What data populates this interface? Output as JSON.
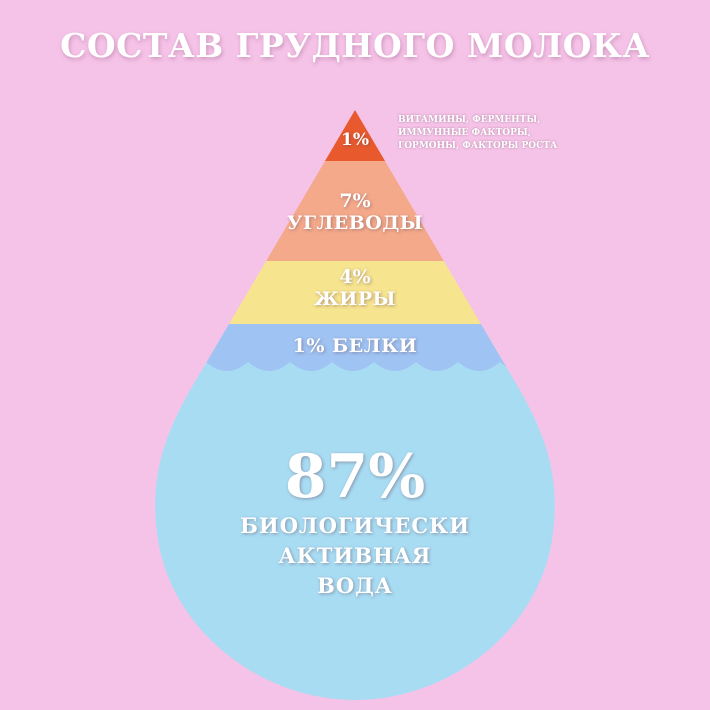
{
  "title": "СОСТАВ ГРУДНОГО МОЛОКА",
  "colors": {
    "background": "#f6c3e8",
    "top": "#e85a2e",
    "carbs": "#f4a98a",
    "fats": "#f6e48f",
    "proteins": "#9fc3f3",
    "water": "#a8dcf3"
  },
  "layers": {
    "top": {
      "percent": "1%",
      "note": [
        "ВИТАМИНЫ, ФЕРМЕНТЫ,",
        "ИММУННЫЕ ФАКТОРЫ,",
        "ГОРМОНЫ, ФАКТОРЫ РОСТА"
      ]
    },
    "carbs": {
      "percent": "7%",
      "name": "УГЛЕВОДЫ"
    },
    "fats": {
      "percent": "4%",
      "name": "ЖИРЫ"
    },
    "proteins": {
      "label": "1% БЕЛКИ"
    },
    "water": {
      "percent": "87%",
      "name": [
        "БИОЛОГИЧЕСКИ",
        "АКТИВНАЯ",
        "ВОДА"
      ]
    }
  }
}
